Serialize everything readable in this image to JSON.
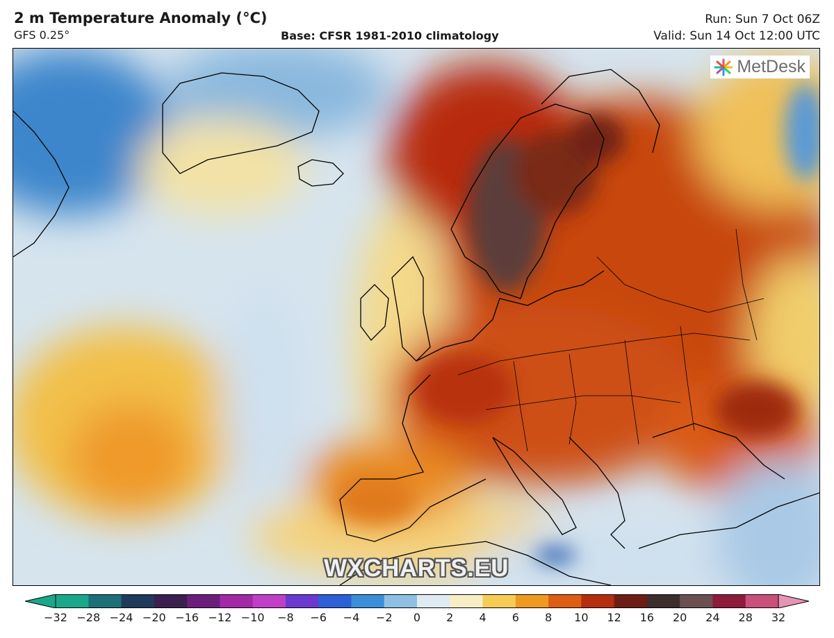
{
  "header": {
    "title": "2 m Temperature Anomaly (°C)",
    "model": "GFS 0.25°",
    "base": "Base: CFSR 1981-2010 climatology",
    "run": "Run: Sun 7 Oct 06Z",
    "valid": "Valid: Sun 14 Oct 12:00 UTC"
  },
  "map": {
    "logo_text": "MetDesk",
    "watermark": "WXCHARTS.EU"
  },
  "colorbar": {
    "ticks": [
      "−32",
      "−28",
      "−24",
      "−20",
      "−16",
      "−12",
      "−10",
      "−8",
      "−6",
      "−4",
      "−2",
      "0",
      "2",
      "4",
      "6",
      "8",
      "10",
      "12",
      "16",
      "20",
      "24",
      "28",
      "32"
    ],
    "colors": [
      "#1aa88a",
      "#1d6f78",
      "#203a5c",
      "#3a1f4f",
      "#6b1f7a",
      "#a22aa6",
      "#c03fc6",
      "#6a3ad0",
      "#2d5fd6",
      "#3b8fd8",
      "#8fc0e4",
      "#dfeaf1",
      "#f7eec6",
      "#f5cc55",
      "#ef9a1e",
      "#dd5d12",
      "#b52e0e",
      "#6e1d14",
      "#3e2d2d",
      "#6a5050",
      "#8e1b3c",
      "#c9507a",
      "#e694b5"
    ]
  }
}
